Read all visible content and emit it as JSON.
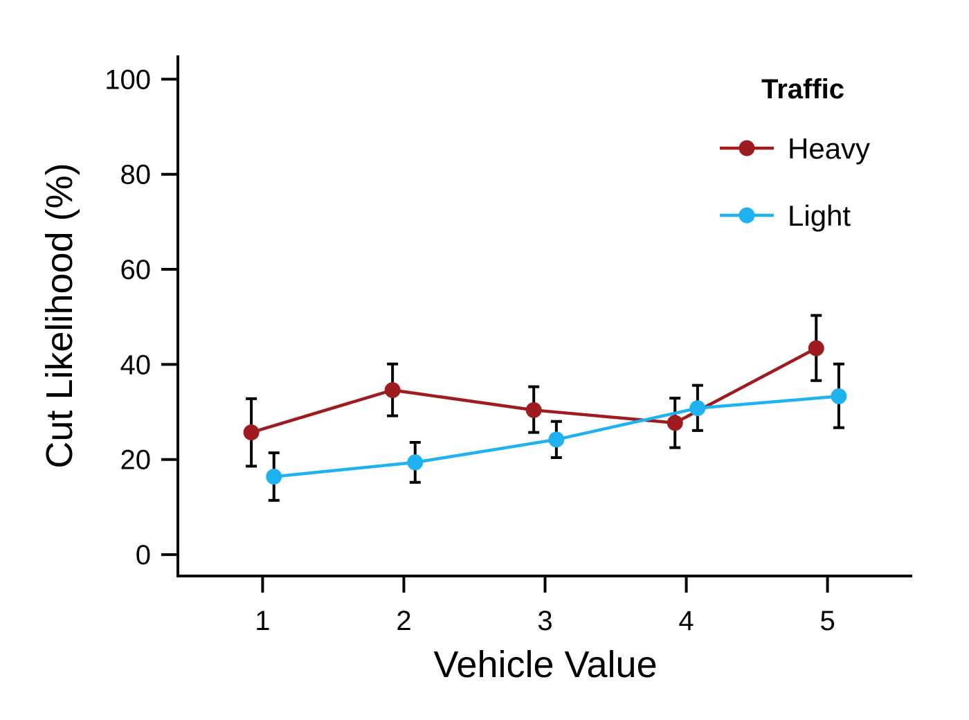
{
  "chart_data": {
    "type": "line",
    "title": "",
    "xlabel": "Vehicle Value",
    "ylabel": "Cut Likelihood (%)",
    "x": [
      1,
      2,
      3,
      4,
      5
    ],
    "xlim": [
      0.4,
      5.6
    ],
    "ylim": [
      -4.5,
      105
    ],
    "yticks": [
      0,
      20,
      40,
      60,
      80,
      100
    ],
    "grid": false,
    "legend": {
      "title": "Traffic",
      "placement": "top-right"
    },
    "error_bars": true,
    "series": [
      {
        "name": "Heavy",
        "color": "#9e1b1f",
        "values": [
          25.7,
          34.6,
          30.4,
          27.7,
          43.4
        ],
        "err_low": [
          18.6,
          29.2,
          25.7,
          22.5,
          36.6
        ],
        "err_high": [
          32.8,
          40.1,
          35.3,
          32.9,
          50.3
        ]
      },
      {
        "name": "Light",
        "color": "#1fb1f0",
        "values": [
          16.4,
          19.4,
          24.2,
          30.8,
          33.3
        ],
        "err_low": [
          11.4,
          15.2,
          20.4,
          26.1,
          26.7
        ],
        "err_high": [
          21.4,
          23.6,
          28.0,
          35.6,
          40.1
        ]
      }
    ]
  }
}
